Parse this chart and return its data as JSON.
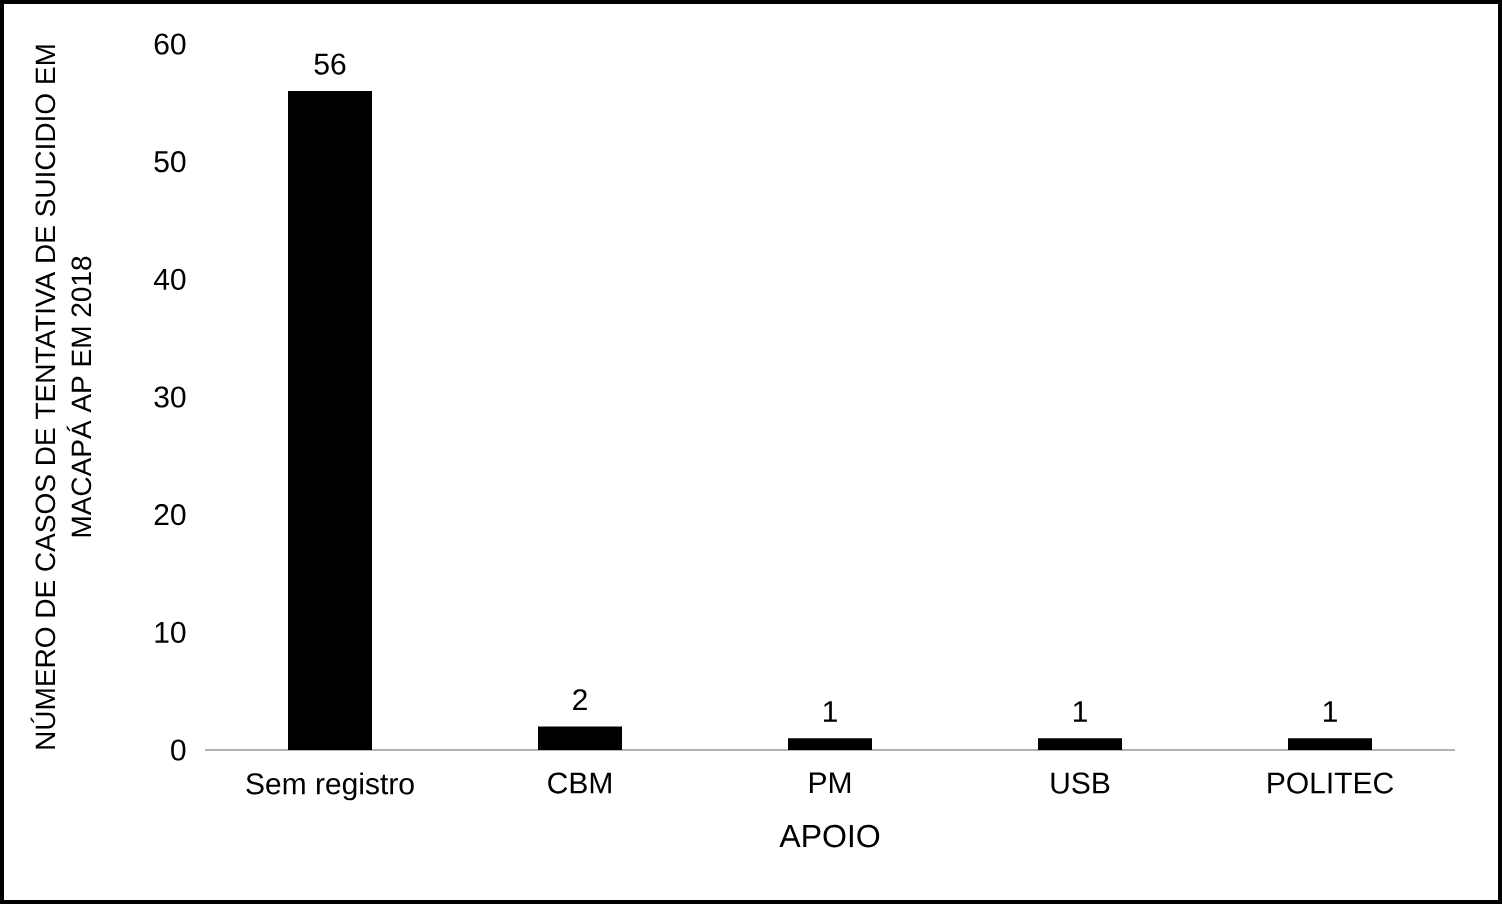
{
  "chart_data": {
    "type": "bar",
    "xlabel": "APOIO",
    "ylabel": "NÚMERO DE CASOS DE TENTATIVA DE SUICIDIO EM MACAPÁ AP EM 2018",
    "categories": [
      "Sem registro",
      "CBM",
      "PM",
      "USB",
      "POLITEC"
    ],
    "values": [
      56,
      2,
      1,
      1,
      1
    ],
    "color": "#000000",
    "ylim": [
      0,
      60
    ],
    "yticks": [
      0,
      10,
      20,
      30,
      40,
      50,
      60
    ],
    "grid": false,
    "data_labels": true
  }
}
